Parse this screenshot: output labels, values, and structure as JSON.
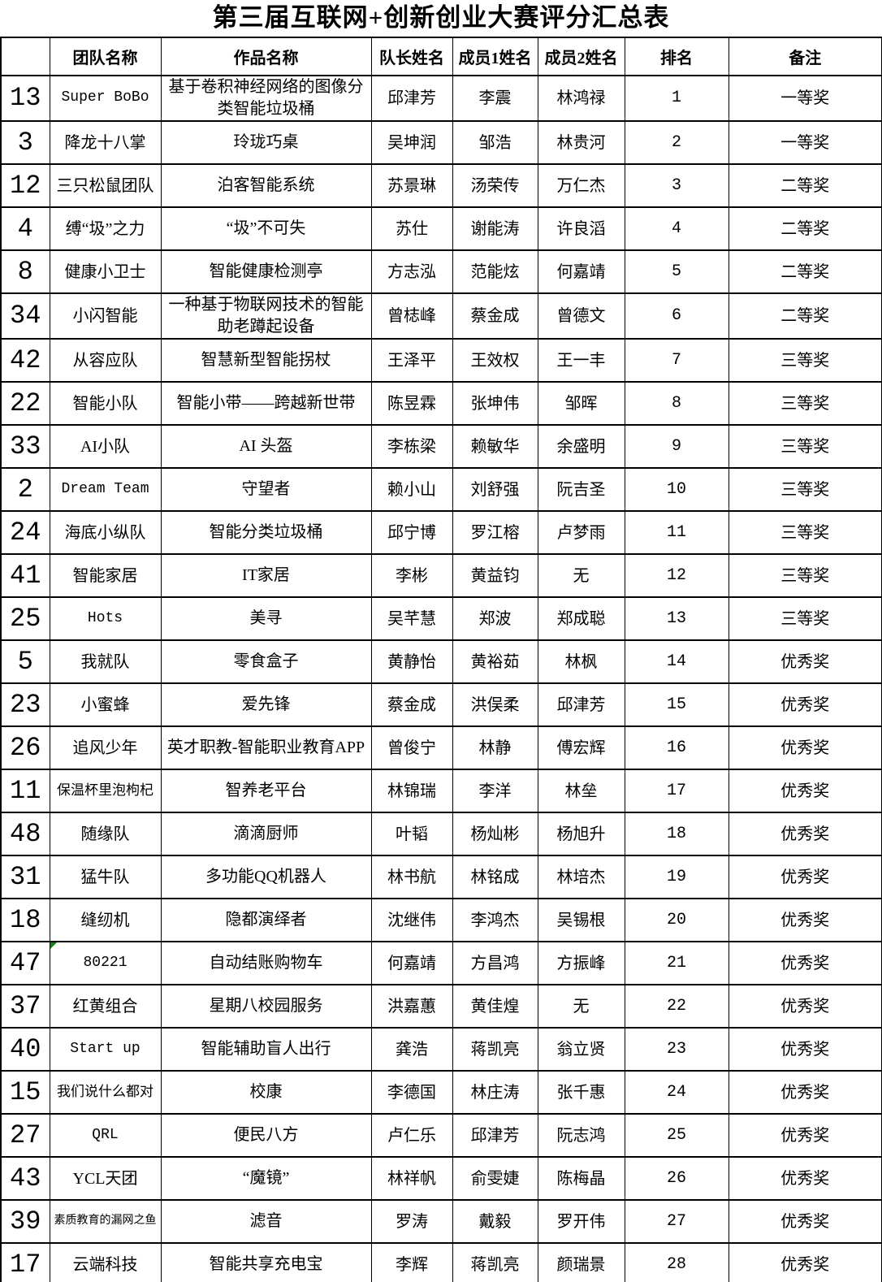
{
  "title": "第三届互联网+创新创业大赛评分汇总表",
  "table": {
    "columns": [
      "",
      "团队名称",
      "作品名称",
      "队长姓名",
      "成员1姓名",
      "成员2姓名",
      "排名",
      "备注"
    ],
    "rows": [
      {
        "no": "13",
        "team": "Super BoBo",
        "work": "基于卷积神经网络的图像分类智能垃圾桶",
        "captain": "邱津芳",
        "member1": "李震",
        "member2": "林鸿禄",
        "rank": "1",
        "award": "一等奖"
      },
      {
        "no": "3",
        "team": "降龙十八掌",
        "work": "玲珑巧桌",
        "captain": "吴坤润",
        "member1": "邹浩",
        "member2": "林贵河",
        "rank": "2",
        "award": "一等奖"
      },
      {
        "no": "12",
        "team": "三只松鼠团队",
        "work": "泊客智能系统",
        "captain": "苏景琳",
        "member1": "汤荣传",
        "member2": "万仁杰",
        "rank": "3",
        "award": "二等奖"
      },
      {
        "no": "4",
        "team": "缚“圾”之力",
        "work": "“圾”不可失",
        "captain": "苏仕",
        "member1": "谢能涛",
        "member2": "许良滔",
        "rank": "4",
        "award": "二等奖"
      },
      {
        "no": "8",
        "team": "健康小卫士",
        "work": "智能健康检测亭",
        "captain": "方志泓",
        "member1": "范能炫",
        "member2": "何嘉靖",
        "rank": "5",
        "award": "二等奖"
      },
      {
        "no": "34",
        "team": "小闪智能",
        "work": "一种基于物联网技术的智能助老蹲起设备",
        "captain": "曾梽峰",
        "member1": "蔡金成",
        "member2": "曾德文",
        "rank": "6",
        "award": "二等奖"
      },
      {
        "no": "42",
        "team": "从容应队",
        "work": "智慧新型智能拐杖",
        "captain": "王泽平",
        "member1": "王效权",
        "member2": "王一丰",
        "rank": "7",
        "award": "三等奖"
      },
      {
        "no": "22",
        "team": "智能小队",
        "work": "智能小带——跨越新世带",
        "captain": "陈昱霖",
        "member1": "张坤伟",
        "member2": "邹晖",
        "rank": "8",
        "award": "三等奖"
      },
      {
        "no": "33",
        "team": "AI小队",
        "work": "AI 头盔",
        "captain": "李栋梁",
        "member1": "赖敏华",
        "member2": "余盛明",
        "rank": "9",
        "award": "三等奖"
      },
      {
        "no": "2",
        "team": "Dream Team",
        "work": "守望者",
        "captain": "赖小山",
        "member1": "刘舒强",
        "member2": "阮吉圣",
        "rank": "10",
        "award": "三等奖"
      },
      {
        "no": "24",
        "team": "海底小纵队",
        "work": "智能分类垃圾桶",
        "captain": "邱宁博",
        "member1": "罗江榕",
        "member2": "卢梦雨",
        "rank": "11",
        "award": "三等奖"
      },
      {
        "no": "41",
        "team": "智能家居",
        "work": "IT家居",
        "captain": "李彬",
        "member1": "黄益钧",
        "member2": "无",
        "rank": "12",
        "award": "三等奖"
      },
      {
        "no": "25",
        "team": "Hots",
        "work": "美寻",
        "captain": "吴芊慧",
        "member1": "郑波",
        "member2": "郑成聪",
        "rank": "13",
        "award": "三等奖"
      },
      {
        "no": "5",
        "team": "我就队",
        "work": "零食盒子",
        "captain": "黄静怡",
        "member1": "黄裕茹",
        "member2": "林枫",
        "rank": "14",
        "award": "优秀奖"
      },
      {
        "no": "23",
        "team": "小蜜蜂",
        "work": "爱先锋",
        "captain": "蔡金成",
        "member1": "洪俣柔",
        "member2": "邱津芳",
        "rank": "15",
        "award": "优秀奖"
      },
      {
        "no": "26",
        "team": "追风少年",
        "work": "英才职教-智能职业教育APP",
        "captain": "曾俊宁",
        "member1": "林静",
        "member2": "傅宏辉",
        "rank": "16",
        "award": "优秀奖"
      },
      {
        "no": "11",
        "team": "保温杯里泡枸杞",
        "work": "智养老平台",
        "captain": "林锦瑞",
        "member1": "李洋",
        "member2": "林垒",
        "rank": "17",
        "award": "优秀奖"
      },
      {
        "no": "48",
        "team": "随缘队",
        "work": "滴滴厨师",
        "captain": "叶韬",
        "member1": "杨灿彬",
        "member2": "杨旭升",
        "rank": "18",
        "award": "优秀奖"
      },
      {
        "no": "31",
        "team": "猛牛队",
        "work": "多功能QQ机器人",
        "captain": "林书航",
        "member1": "林铭成",
        "member2": "林培杰",
        "rank": "19",
        "award": "优秀奖"
      },
      {
        "no": "18",
        "team": "缝纫机",
        "work": "隐都演绎者",
        "captain": "沈继伟",
        "member1": "李鸿杰",
        "member2": "吴锡根",
        "rank": "20",
        "award": "优秀奖"
      },
      {
        "no": "47",
        "team": "80221",
        "work": "自动结账购物车",
        "captain": "何嘉靖",
        "member1": "方昌鸿",
        "member2": "方振峰",
        "rank": "21",
        "award": "优秀奖"
      },
      {
        "no": "37",
        "team": "红黄组合",
        "work": "星期八校园服务",
        "captain": "洪嘉蕙",
        "member1": "黄佳煌",
        "member2": "无",
        "rank": "22",
        "award": "优秀奖"
      },
      {
        "no": "40",
        "team": "Start up",
        "work": "智能辅助盲人出行",
        "captain": "龚浩",
        "member1": "蒋凯亮",
        "member2": "翁立贤",
        "rank": "23",
        "award": "优秀奖"
      },
      {
        "no": "15",
        "team": "我们说什么都对",
        "work": "校康",
        "captain": "李德国",
        "member1": "林庄涛",
        "member2": "张千惠",
        "rank": "24",
        "award": "优秀奖"
      },
      {
        "no": "27",
        "team": "QRL",
        "work": "便民八方",
        "captain": "卢仁乐",
        "member1": "邱津芳",
        "member2": "阮志鸿",
        "rank": "25",
        "award": "优秀奖"
      },
      {
        "no": "43",
        "team": "YCL天团",
        "work": "“魔镜”",
        "captain": "林祥帆",
        "member1": "俞雯婕",
        "member2": "陈梅晶",
        "rank": "26",
        "award": "优秀奖"
      },
      {
        "no": "39",
        "team": "素质教育的漏网之鱼",
        "work": "滤音",
        "captain": "罗涛",
        "member1": "戴毅",
        "member2": "罗开伟",
        "rank": "27",
        "award": "优秀奖"
      },
      {
        "no": "17",
        "team": "云端科技",
        "work": "智能共享充电宝",
        "captain": "李辉",
        "member1": "蒋凯亮",
        "member2": "颜瑞景",
        "rank": "28",
        "award": "优秀奖"
      }
    ],
    "error_indicator": {
      "row_index": 20,
      "column_index": 1,
      "color": "#1e7b1e"
    }
  }
}
